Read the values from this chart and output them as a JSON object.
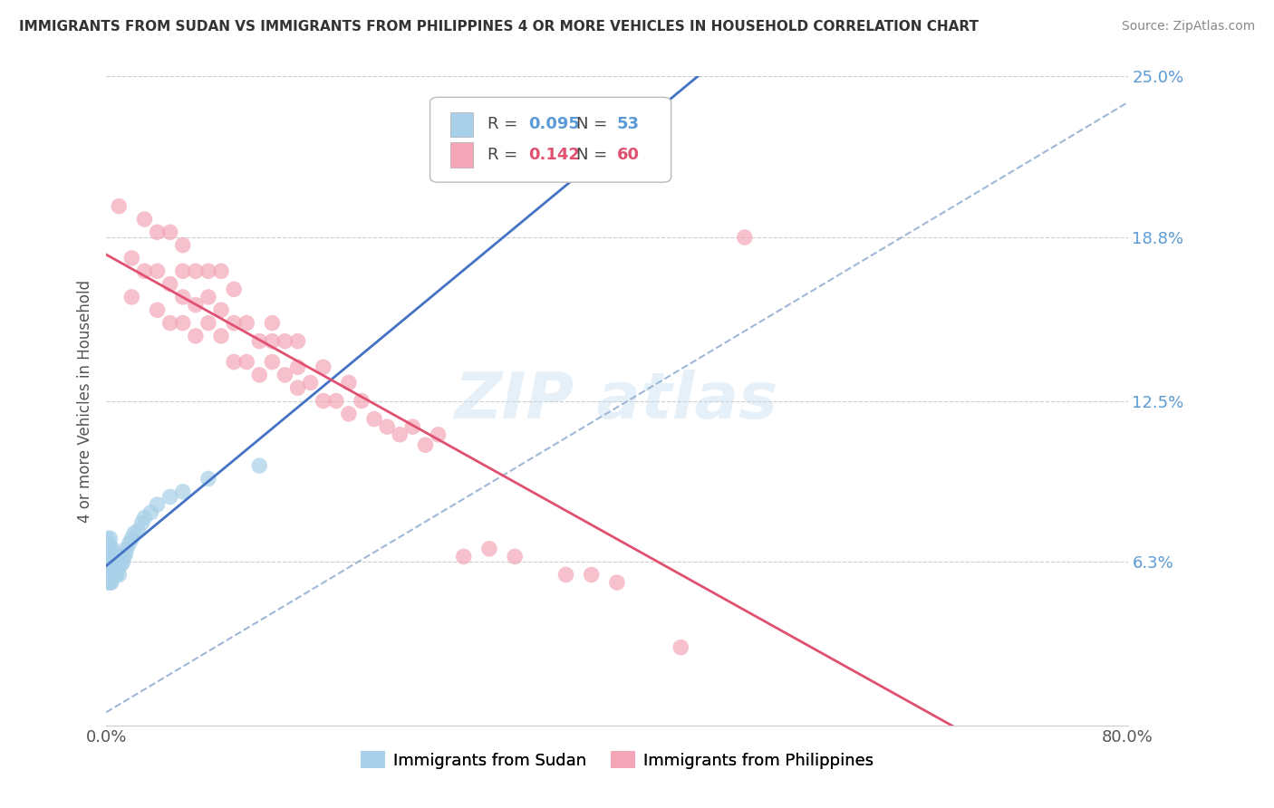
{
  "title": "IMMIGRANTS FROM SUDAN VS IMMIGRANTS FROM PHILIPPINES 4 OR MORE VEHICLES IN HOUSEHOLD CORRELATION CHART",
  "source": "Source: ZipAtlas.com",
  "ylabel": "4 or more Vehicles in Household",
  "xlim": [
    0.0,
    0.8
  ],
  "ylim": [
    0.0,
    0.25
  ],
  "ytick_positions": [
    0.063,
    0.125,
    0.188,
    0.25
  ],
  "ytick_labels": [
    "6.3%",
    "12.5%",
    "18.8%",
    "25.0%"
  ],
  "legend_sudan_R": "0.095",
  "legend_sudan_N": "53",
  "legend_phil_R": "0.142",
  "legend_phil_N": "60",
  "sudan_color": "#a8d0e8",
  "phil_color": "#f4a6b8",
  "sudan_line_color": "#4472c4",
  "phil_line_color": "#e05070",
  "dash_line_color": "#a0b8d8",
  "sudan_x": [
    0.001,
    0.001,
    0.001,
    0.001,
    0.002,
    0.002,
    0.002,
    0.002,
    0.002,
    0.002,
    0.003,
    0.003,
    0.003,
    0.003,
    0.003,
    0.003,
    0.004,
    0.004,
    0.004,
    0.004,
    0.005,
    0.005,
    0.005,
    0.005,
    0.006,
    0.006,
    0.006,
    0.007,
    0.007,
    0.008,
    0.008,
    0.009,
    0.009,
    0.01,
    0.01,
    0.01,
    0.012,
    0.013,
    0.014,
    0.015,
    0.016,
    0.018,
    0.02,
    0.022,
    0.025,
    0.028,
    0.03,
    0.035,
    0.04,
    0.05,
    0.06,
    0.08,
    0.12
  ],
  "sudan_y": [
    0.06,
    0.065,
    0.068,
    0.072,
    0.055,
    0.06,
    0.062,
    0.065,
    0.068,
    0.07,
    0.055,
    0.058,
    0.062,
    0.065,
    0.068,
    0.072,
    0.055,
    0.058,
    0.062,
    0.065,
    0.058,
    0.062,
    0.065,
    0.068,
    0.058,
    0.062,
    0.065,
    0.058,
    0.062,
    0.058,
    0.062,
    0.06,
    0.065,
    0.058,
    0.062,
    0.065,
    0.062,
    0.063,
    0.065,
    0.066,
    0.068,
    0.07,
    0.072,
    0.074,
    0.075,
    0.078,
    0.08,
    0.082,
    0.085,
    0.088,
    0.09,
    0.095,
    0.1
  ],
  "phil_x": [
    0.01,
    0.02,
    0.02,
    0.03,
    0.03,
    0.04,
    0.04,
    0.04,
    0.05,
    0.05,
    0.05,
    0.06,
    0.06,
    0.06,
    0.06,
    0.07,
    0.07,
    0.07,
    0.08,
    0.08,
    0.08,
    0.09,
    0.09,
    0.09,
    0.1,
    0.1,
    0.1,
    0.11,
    0.11,
    0.12,
    0.12,
    0.13,
    0.13,
    0.13,
    0.14,
    0.14,
    0.15,
    0.15,
    0.15,
    0.16,
    0.17,
    0.17,
    0.18,
    0.19,
    0.19,
    0.2,
    0.21,
    0.22,
    0.23,
    0.24,
    0.25,
    0.26,
    0.28,
    0.3,
    0.32,
    0.36,
    0.38,
    0.4,
    0.45,
    0.5
  ],
  "phil_y": [
    0.2,
    0.165,
    0.18,
    0.175,
    0.195,
    0.16,
    0.175,
    0.19,
    0.155,
    0.17,
    0.19,
    0.155,
    0.165,
    0.175,
    0.185,
    0.15,
    0.162,
    0.175,
    0.155,
    0.165,
    0.175,
    0.15,
    0.16,
    0.175,
    0.14,
    0.155,
    0.168,
    0.14,
    0.155,
    0.135,
    0.148,
    0.14,
    0.148,
    0.155,
    0.135,
    0.148,
    0.13,
    0.138,
    0.148,
    0.132,
    0.125,
    0.138,
    0.125,
    0.12,
    0.132,
    0.125,
    0.118,
    0.115,
    0.112,
    0.115,
    0.108,
    0.112,
    0.065,
    0.068,
    0.065,
    0.058,
    0.058,
    0.055,
    0.03,
    0.188
  ]
}
